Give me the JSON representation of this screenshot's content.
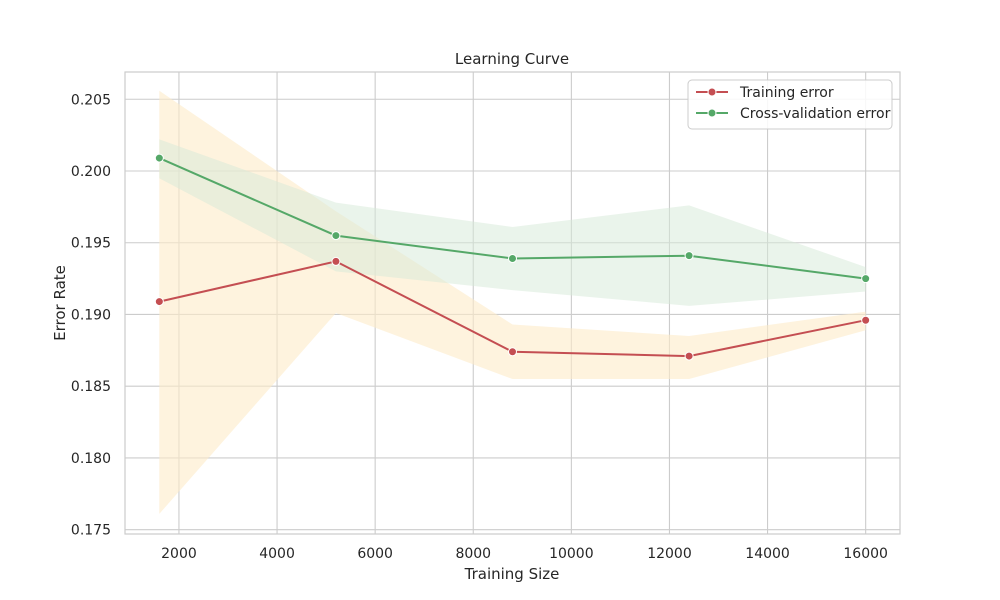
{
  "chart_data": {
    "type": "line",
    "title": "Learning Curve",
    "xlabel": "Training Size",
    "ylabel": "Error Rate",
    "xlim": [
      900,
      16700
    ],
    "ylim": [
      0.1747,
      0.2069
    ],
    "xticks": [
      2000,
      4000,
      6000,
      8000,
      10000,
      12000,
      14000,
      16000
    ],
    "yticks": [
      0.175,
      0.18,
      0.185,
      0.19,
      0.195,
      0.2,
      0.205
    ],
    "xtick_labels": [
      "2000",
      "4000",
      "6000",
      "8000",
      "10000",
      "12000",
      "14000",
      "16000"
    ],
    "ytick_labels": [
      "0.175",
      "0.180",
      "0.185",
      "0.190",
      "0.195",
      "0.200",
      "0.205"
    ],
    "grid": true,
    "legend_position": "top-right",
    "x": [
      1600,
      5200,
      8800,
      12400,
      16000
    ],
    "series": [
      {
        "name": "Training error",
        "color": "#c44e52",
        "band_color": "#fdebc8",
        "values": [
          0.1909,
          0.1937,
          0.1874,
          0.1871,
          0.1896
        ],
        "lower": [
          0.1761,
          0.1901,
          0.1855,
          0.1855,
          0.1889
        ],
        "upper": [
          0.2056,
          0.1972,
          0.1893,
          0.1885,
          0.1902
        ]
      },
      {
        "name": "Cross-validation error",
        "color": "#55a868",
        "band_color": "#d5ead8",
        "values": [
          0.2009,
          0.1955,
          0.1939,
          0.1941,
          0.1925
        ],
        "lower": [
          0.1995,
          0.193,
          0.1917,
          0.1906,
          0.1916
        ],
        "upper": [
          0.2022,
          0.1978,
          0.1961,
          0.1976,
          0.1933
        ]
      }
    ]
  }
}
